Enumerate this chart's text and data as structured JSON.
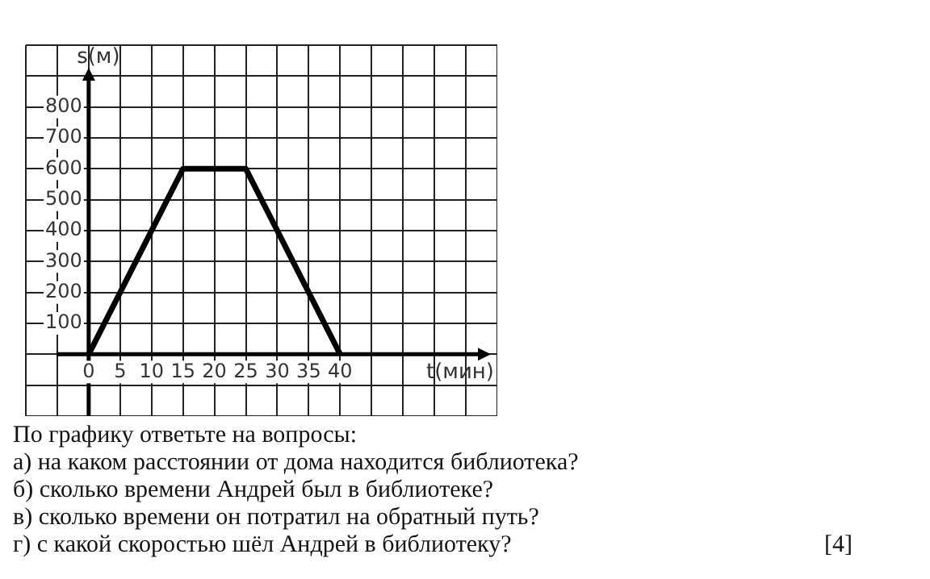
{
  "chart_data": {
    "type": "line",
    "xlabel": "t(мин)",
    "ylabel": "s(м)",
    "x": [
      0,
      15,
      25,
      40
    ],
    "series": [
      {
        "color": "#000000",
        "values": [
          0,
          600,
          600,
          0
        ]
      }
    ],
    "xlim": [
      -10,
      65
    ],
    "ylim": [
      -200,
      1000
    ],
    "xticks": [
      {
        "value": -10,
        "label": null
      },
      {
        "value": -5,
        "label": null
      },
      0,
      5,
      10,
      15,
      20,
      25,
      30,
      35,
      40,
      {
        "value": 45,
        "label": null
      },
      {
        "value": 50,
        "label": null
      },
      {
        "value": 55,
        "label": null
      },
      {
        "value": 60,
        "label": null
      },
      {
        "value": 65,
        "label": null
      }
    ],
    "yticks": [
      {
        "value": -200,
        "label": null
      },
      {
        "value": -100,
        "label": null
      },
      {
        "value": 0,
        "label": null
      },
      100,
      200,
      300,
      400,
      500,
      600,
      700,
      800,
      {
        "value": 900,
        "label": null
      },
      {
        "value": 1000,
        "label": null
      }
    ],
    "grid": true,
    "legend": false,
    "marker": "none",
    "line_style": "solid",
    "annotations": [
      "По графику ответьте на вопросы:",
      "а) на каком расстоянии от дома находится библиотека?",
      "б) сколько времени Андрей был в библиотеке?",
      "в) сколько времени он потратил на обратный путь?",
      "г) с какой скоростью шёл Андрей в библиотеку?",
      "[4]"
    ]
  }
}
